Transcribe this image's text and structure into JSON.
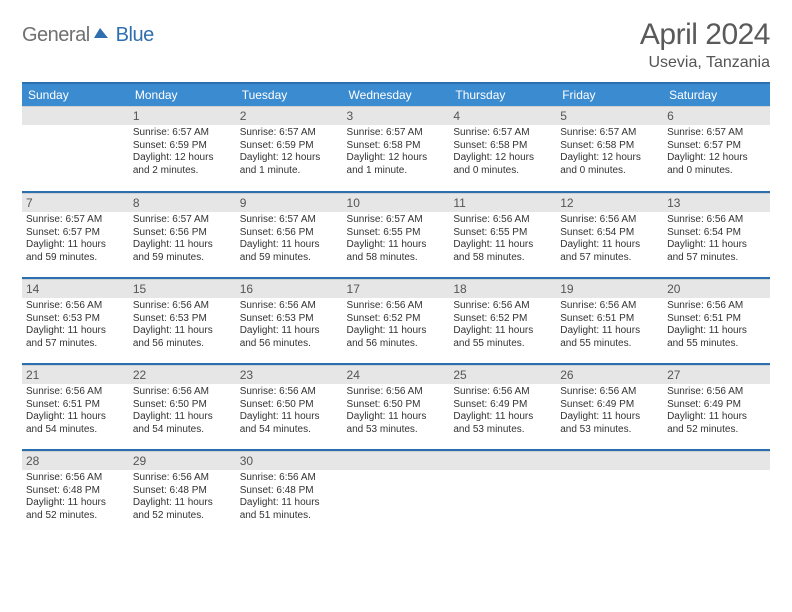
{
  "logo": {
    "text1": "General",
    "text2": "Blue"
  },
  "title": {
    "month": "April 2024",
    "location": "Usevia, Tanzania"
  },
  "colors": {
    "header_bar": "#3b8bd1",
    "rule": "#2b6fb1",
    "daynum_bg": "#e6e6e6",
    "logo_gray": "#707070",
    "logo_blue": "#2f6fb0"
  },
  "weekdays": [
    "Sunday",
    "Monday",
    "Tuesday",
    "Wednesday",
    "Thursday",
    "Friday",
    "Saturday"
  ],
  "weeks": [
    [
      null,
      {
        "n": "1",
        "sr": "Sunrise: 6:57 AM",
        "ss": "Sunset: 6:59 PM",
        "dl": "Daylight: 12 hours and 2 minutes."
      },
      {
        "n": "2",
        "sr": "Sunrise: 6:57 AM",
        "ss": "Sunset: 6:59 PM",
        "dl": "Daylight: 12 hours and 1 minute."
      },
      {
        "n": "3",
        "sr": "Sunrise: 6:57 AM",
        "ss": "Sunset: 6:58 PM",
        "dl": "Daylight: 12 hours and 1 minute."
      },
      {
        "n": "4",
        "sr": "Sunrise: 6:57 AM",
        "ss": "Sunset: 6:58 PM",
        "dl": "Daylight: 12 hours and 0 minutes."
      },
      {
        "n": "5",
        "sr": "Sunrise: 6:57 AM",
        "ss": "Sunset: 6:58 PM",
        "dl": "Daylight: 12 hours and 0 minutes."
      },
      {
        "n": "6",
        "sr": "Sunrise: 6:57 AM",
        "ss": "Sunset: 6:57 PM",
        "dl": "Daylight: 12 hours and 0 minutes."
      }
    ],
    [
      {
        "n": "7",
        "sr": "Sunrise: 6:57 AM",
        "ss": "Sunset: 6:57 PM",
        "dl": "Daylight: 11 hours and 59 minutes."
      },
      {
        "n": "8",
        "sr": "Sunrise: 6:57 AM",
        "ss": "Sunset: 6:56 PM",
        "dl": "Daylight: 11 hours and 59 minutes."
      },
      {
        "n": "9",
        "sr": "Sunrise: 6:57 AM",
        "ss": "Sunset: 6:56 PM",
        "dl": "Daylight: 11 hours and 59 minutes."
      },
      {
        "n": "10",
        "sr": "Sunrise: 6:57 AM",
        "ss": "Sunset: 6:55 PM",
        "dl": "Daylight: 11 hours and 58 minutes."
      },
      {
        "n": "11",
        "sr": "Sunrise: 6:56 AM",
        "ss": "Sunset: 6:55 PM",
        "dl": "Daylight: 11 hours and 58 minutes."
      },
      {
        "n": "12",
        "sr": "Sunrise: 6:56 AM",
        "ss": "Sunset: 6:54 PM",
        "dl": "Daylight: 11 hours and 57 minutes."
      },
      {
        "n": "13",
        "sr": "Sunrise: 6:56 AM",
        "ss": "Sunset: 6:54 PM",
        "dl": "Daylight: 11 hours and 57 minutes."
      }
    ],
    [
      {
        "n": "14",
        "sr": "Sunrise: 6:56 AM",
        "ss": "Sunset: 6:53 PM",
        "dl": "Daylight: 11 hours and 57 minutes."
      },
      {
        "n": "15",
        "sr": "Sunrise: 6:56 AM",
        "ss": "Sunset: 6:53 PM",
        "dl": "Daylight: 11 hours and 56 minutes."
      },
      {
        "n": "16",
        "sr": "Sunrise: 6:56 AM",
        "ss": "Sunset: 6:53 PM",
        "dl": "Daylight: 11 hours and 56 minutes."
      },
      {
        "n": "17",
        "sr": "Sunrise: 6:56 AM",
        "ss": "Sunset: 6:52 PM",
        "dl": "Daylight: 11 hours and 56 minutes."
      },
      {
        "n": "18",
        "sr": "Sunrise: 6:56 AM",
        "ss": "Sunset: 6:52 PM",
        "dl": "Daylight: 11 hours and 55 minutes."
      },
      {
        "n": "19",
        "sr": "Sunrise: 6:56 AM",
        "ss": "Sunset: 6:51 PM",
        "dl": "Daylight: 11 hours and 55 minutes."
      },
      {
        "n": "20",
        "sr": "Sunrise: 6:56 AM",
        "ss": "Sunset: 6:51 PM",
        "dl": "Daylight: 11 hours and 55 minutes."
      }
    ],
    [
      {
        "n": "21",
        "sr": "Sunrise: 6:56 AM",
        "ss": "Sunset: 6:51 PM",
        "dl": "Daylight: 11 hours and 54 minutes."
      },
      {
        "n": "22",
        "sr": "Sunrise: 6:56 AM",
        "ss": "Sunset: 6:50 PM",
        "dl": "Daylight: 11 hours and 54 minutes."
      },
      {
        "n": "23",
        "sr": "Sunrise: 6:56 AM",
        "ss": "Sunset: 6:50 PM",
        "dl": "Daylight: 11 hours and 54 minutes."
      },
      {
        "n": "24",
        "sr": "Sunrise: 6:56 AM",
        "ss": "Sunset: 6:50 PM",
        "dl": "Daylight: 11 hours and 53 minutes."
      },
      {
        "n": "25",
        "sr": "Sunrise: 6:56 AM",
        "ss": "Sunset: 6:49 PM",
        "dl": "Daylight: 11 hours and 53 minutes."
      },
      {
        "n": "26",
        "sr": "Sunrise: 6:56 AM",
        "ss": "Sunset: 6:49 PM",
        "dl": "Daylight: 11 hours and 53 minutes."
      },
      {
        "n": "27",
        "sr": "Sunrise: 6:56 AM",
        "ss": "Sunset: 6:49 PM",
        "dl": "Daylight: 11 hours and 52 minutes."
      }
    ],
    [
      {
        "n": "28",
        "sr": "Sunrise: 6:56 AM",
        "ss": "Sunset: 6:48 PM",
        "dl": "Daylight: 11 hours and 52 minutes."
      },
      {
        "n": "29",
        "sr": "Sunrise: 6:56 AM",
        "ss": "Sunset: 6:48 PM",
        "dl": "Daylight: 11 hours and 52 minutes."
      },
      {
        "n": "30",
        "sr": "Sunrise: 6:56 AM",
        "ss": "Sunset: 6:48 PM",
        "dl": "Daylight: 11 hours and 51 minutes."
      },
      null,
      null,
      null,
      null
    ]
  ]
}
